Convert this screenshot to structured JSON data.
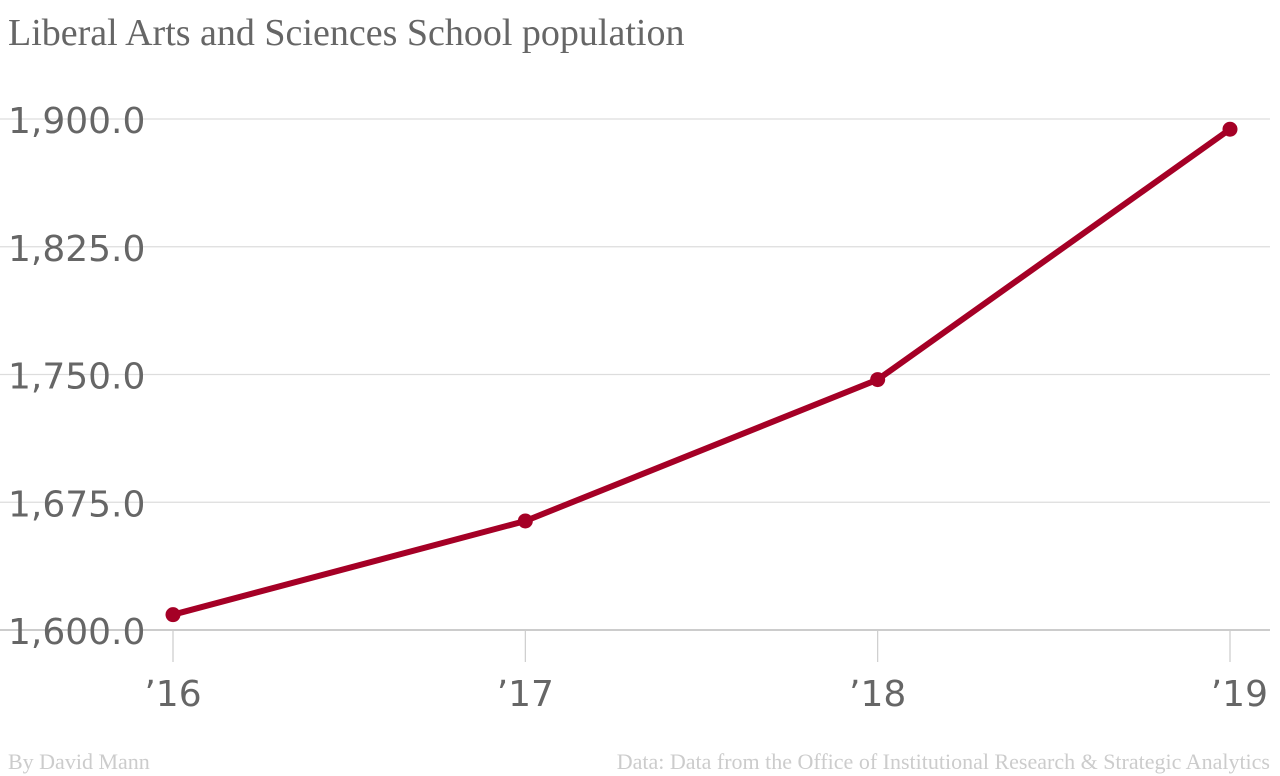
{
  "chart_data": {
    "type": "line",
    "title": "Liberal Arts and Sciences School population",
    "xlabel": "",
    "ylabel": "",
    "categories": [
      "’16",
      "’17",
      "’18",
      "’19"
    ],
    "series": [
      {
        "values": [
          1609,
          1664,
          1747,
          1894
        ],
        "color": "#a50026"
      }
    ],
    "ylim": [
      1600,
      1900
    ],
    "yticks": [
      1900,
      1825,
      1750,
      1675,
      1600
    ],
    "ytick_labels": [
      "1,900.0",
      "1,825.0",
      "1,750.0",
      "1,675.0",
      "1,600.0"
    ],
    "grid": "horizontal",
    "marker": "circle"
  },
  "footer": {
    "byline": "By David Mann",
    "source": "Data: Data from the Office of Institutional Research & Strategic Analytics"
  }
}
